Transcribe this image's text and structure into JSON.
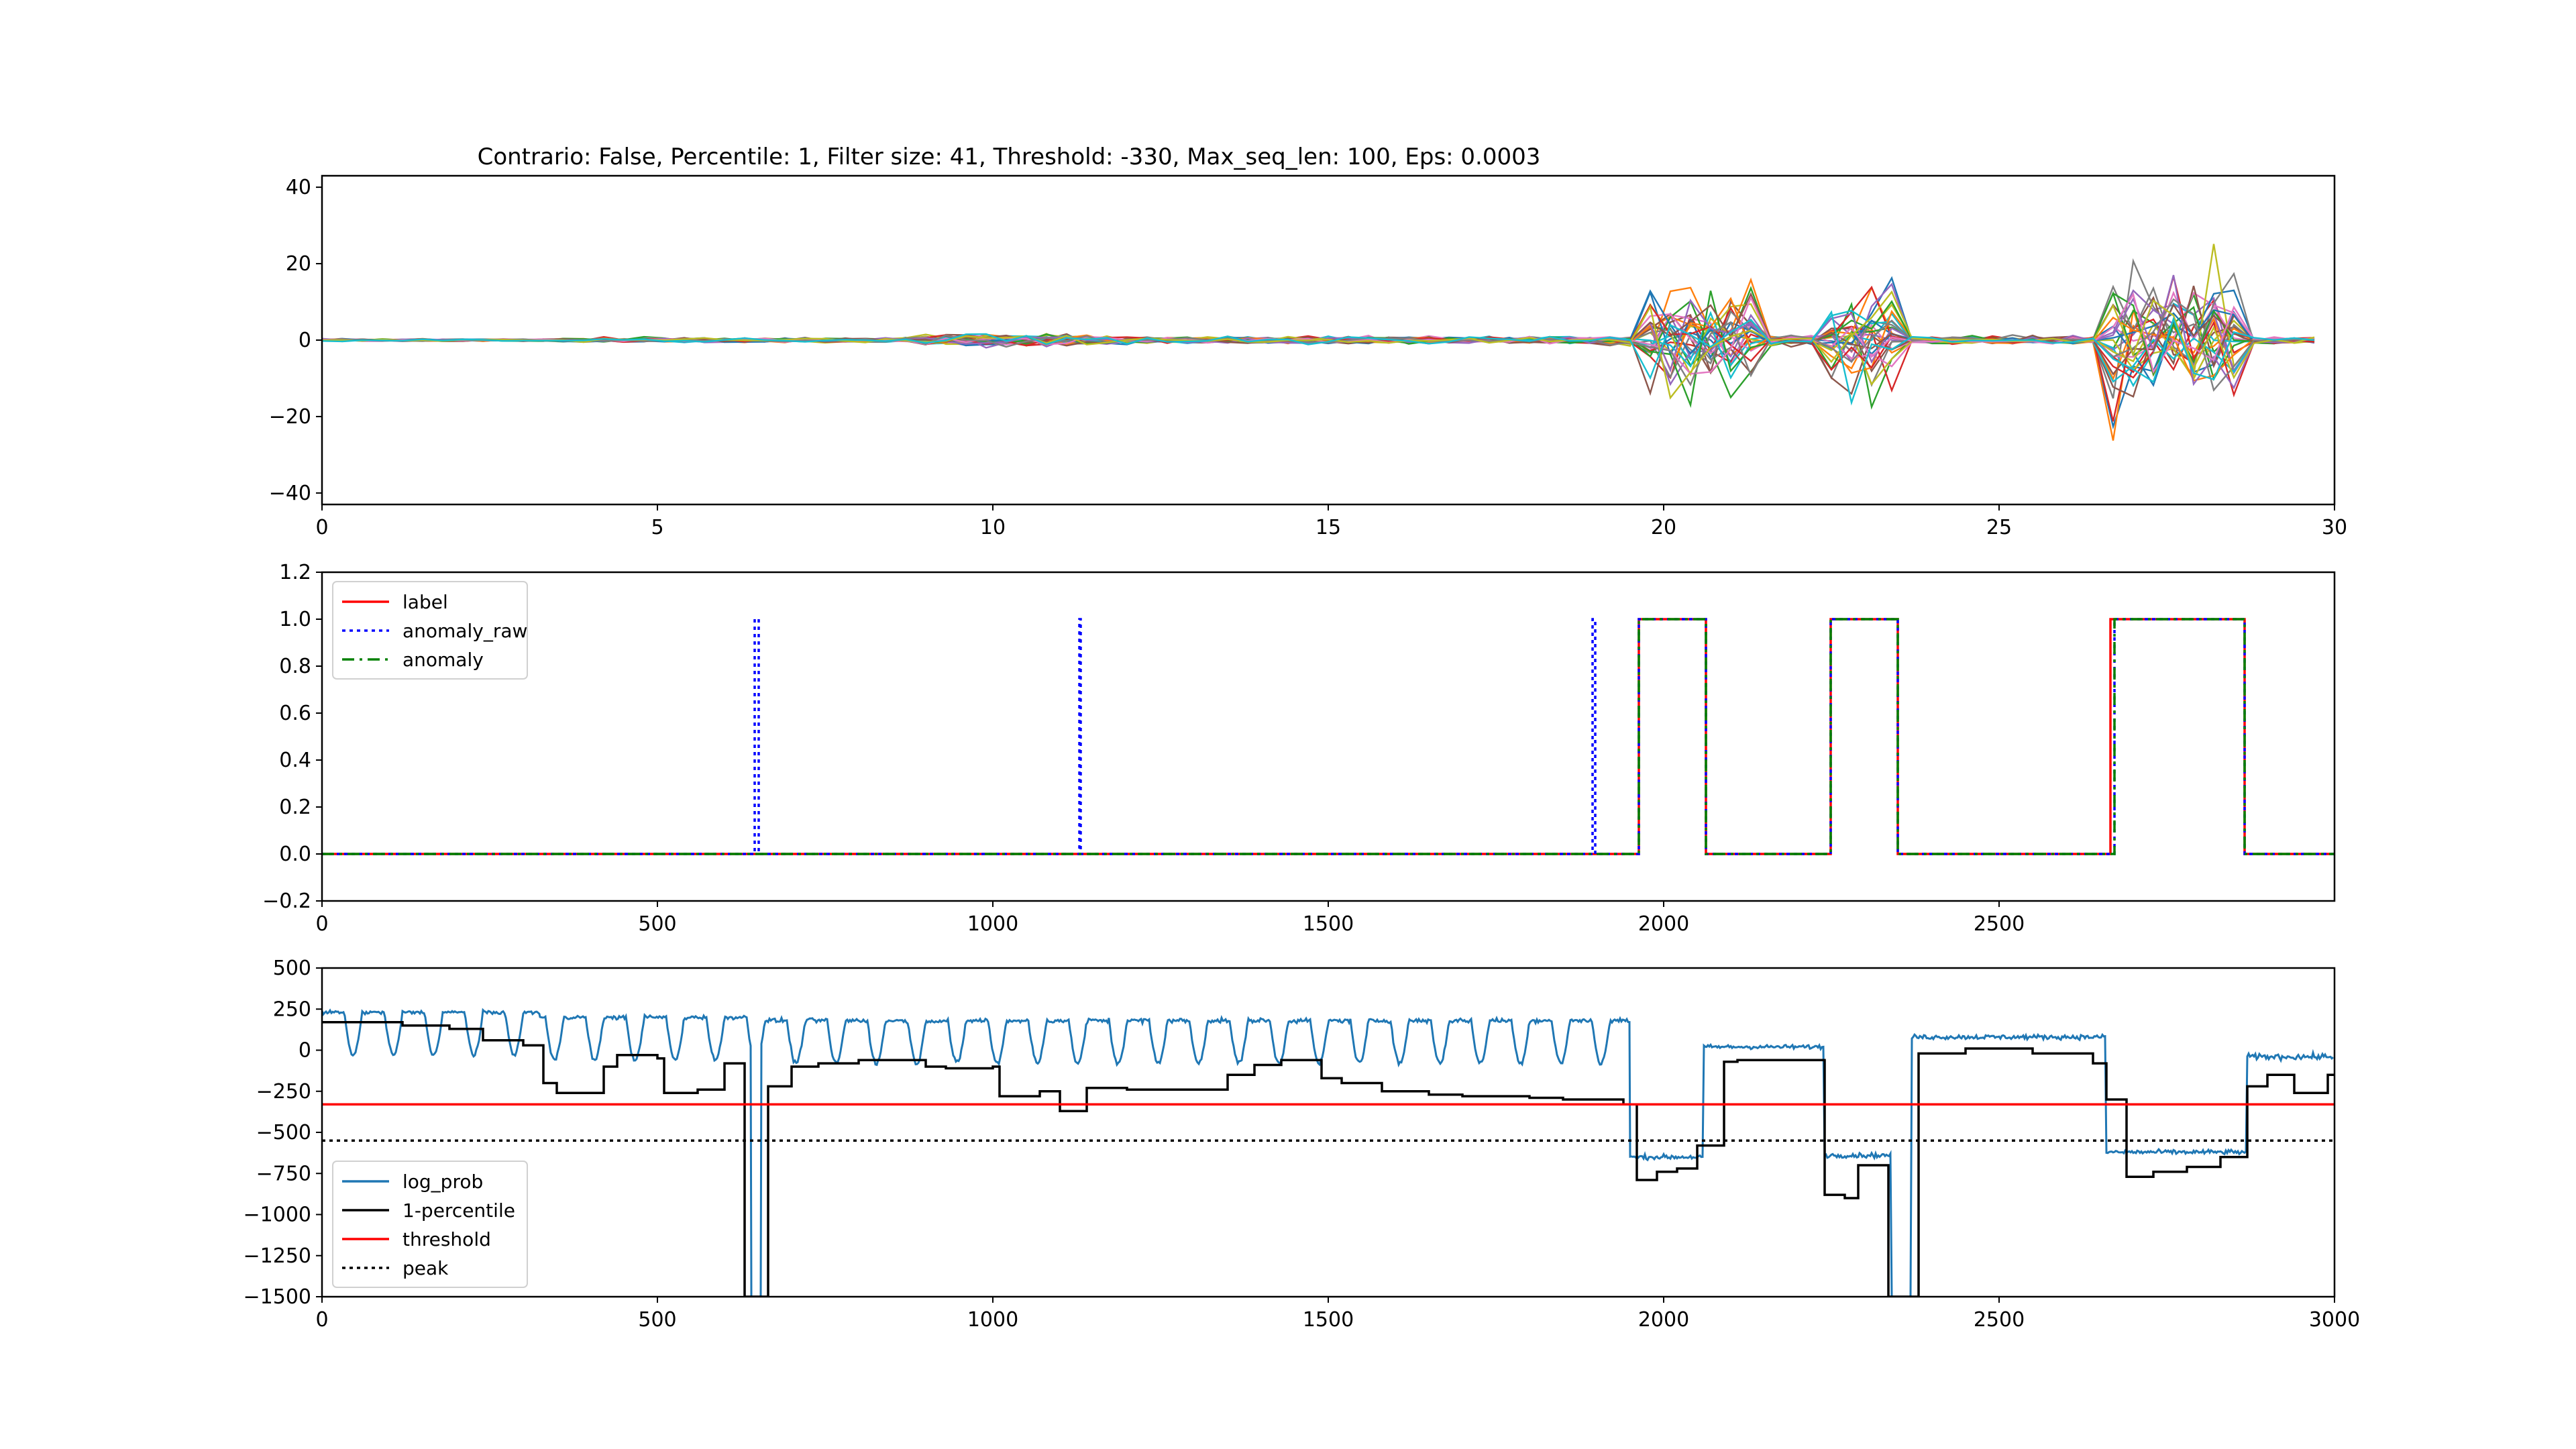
{
  "figure": {
    "title": "Contrario: False, Percentile: 1, Filter size: 41, Threshold: -330, Max_seq_len: 100, Eps: 0.0003"
  },
  "chart_data": [
    {
      "type": "line",
      "title": "Contrario: False, Percentile: 1, Filter size: 41, Threshold: -330, Max_seq_len: 100, Eps: 0.0003",
      "xlabel": "",
      "ylabel": "",
      "xlim": [
        0,
        30
      ],
      "ylim": [
        -43,
        43
      ],
      "xticks": [
        0,
        5,
        10,
        15,
        20,
        25,
        30
      ],
      "yticks": [
        -40,
        -20,
        0,
        20,
        40
      ],
      "grid": false,
      "legend": null,
      "series_count": 30,
      "palette": [
        "#1f77b4",
        "#ff7f0e",
        "#2ca02c",
        "#d62728",
        "#9467bd",
        "#8c564b",
        "#e377c2",
        "#7f7f7f",
        "#bcbd22",
        "#17becf"
      ],
      "x_step": 0.3,
      "noise_regions": [
        {
          "x": [
            0,
            3.5
          ],
          "amplitude": 0.5
        },
        {
          "x": [
            3.5,
            9.0
          ],
          "amplitude": 1.0
        },
        {
          "x": [
            9.0,
            12.0
          ],
          "amplitude": 2.5
        },
        {
          "x": [
            12.0,
            19.0
          ],
          "amplitude": 1.5
        },
        {
          "x": [
            19.0,
            19.6
          ],
          "amplitude": 2.0
        },
        {
          "x": [
            19.6,
            21.4
          ],
          "amplitude": 26
        },
        {
          "x": [
            21.4,
            22.3
          ],
          "amplitude": 2.0
        },
        {
          "x": [
            22.3,
            23.6
          ],
          "amplitude": 26
        },
        {
          "x": [
            23.6,
            26.6
          ],
          "amplitude": 1.5
        },
        {
          "x": [
            26.6,
            28.8
          ],
          "amplitude": 32
        },
        {
          "x": [
            28.8,
            29.8
          ],
          "amplitude": 1.5
        }
      ]
    },
    {
      "type": "line",
      "xlim": [
        0,
        3000
      ],
      "ylim": [
        -0.2,
        1.2
      ],
      "xticks": [
        0,
        500,
        1000,
        1500,
        2000,
        2500
      ],
      "yticks": [
        -0.2,
        0.0,
        0.2,
        0.4,
        0.6,
        0.8,
        1.0,
        1.2
      ],
      "ytick_labels": [
        "−0.2",
        "0.0",
        "0.2",
        "0.4",
        "0.6",
        "0.8",
        "1.0",
        "1.2"
      ],
      "legend": "upper left",
      "series": [
        {
          "name": "label",
          "color": "#ff0000",
          "style": "solid",
          "x": [
            0,
            1963,
            1963,
            2063,
            2063,
            2249,
            2249,
            2349,
            2349,
            2666,
            2666,
            2866,
            2866,
            3000
          ],
          "y": [
            0,
            0,
            1,
            1,
            0,
            0,
            1,
            1,
            0,
            0,
            1,
            1,
            0,
            0
          ]
        },
        {
          "name": "anomaly_raw",
          "color": "#0000ff",
          "style": "dotted",
          "x": [
            0,
            645,
            645,
            651,
            651,
            1129,
            1129,
            1131,
            1131,
            1894,
            1894,
            1898,
            1898,
            1963,
            1963,
            2063,
            2063,
            2249,
            2249,
            2349,
            2349,
            2672,
            2672,
            2866,
            2866,
            3000
          ],
          "y": [
            0,
            0,
            1,
            1,
            0,
            0,
            1,
            1,
            0,
            0,
            1,
            1,
            0,
            0,
            1,
            1,
            0,
            0,
            1,
            1,
            0,
            0,
            1,
            1,
            0,
            0
          ]
        },
        {
          "name": "anomaly",
          "color": "#008000",
          "style": "dashdot",
          "x": [
            0,
            1963,
            1963,
            2063,
            2063,
            2249,
            2249,
            2349,
            2349,
            2672,
            2672,
            2866,
            2866,
            3000
          ],
          "y": [
            0,
            0,
            1,
            1,
            0,
            0,
            1,
            1,
            0,
            0,
            1,
            1,
            0,
            0
          ]
        }
      ]
    },
    {
      "type": "line",
      "xlim": [
        0,
        3000
      ],
      "ylim": [
        -1500,
        500
      ],
      "xticks": [
        0,
        500,
        1000,
        1500,
        2000,
        2500,
        3000
      ],
      "yticks": [
        -1500,
        -1250,
        -1000,
        -750,
        -500,
        -250,
        0,
        250,
        500
      ],
      "ytick_labels": [
        "−1500",
        "−1250",
        "−1000",
        "−750",
        "−500",
        "−250",
        "0",
        "250",
        "500"
      ],
      "legend": "lower left",
      "series": [
        {
          "name": "log_prob",
          "color": "#1f77b4",
          "style": "solid",
          "segments": [
            {
              "x": [
                0,
                325
              ],
              "base": 230,
              "wiggle": 30,
              "dips": true
            },
            {
              "x": [
                325,
                640
              ],
              "base": 200,
              "wiggle": 35,
              "dips": true
            },
            {
              "x": [
                640,
                655
              ],
              "value": -1500
            },
            {
              "x": [
                655,
                1950
              ],
              "base": 180,
              "wiggle": 40,
              "dips": true
            },
            {
              "x": [
                1950,
                2060
              ],
              "base": -650,
              "wiggle": 40
            },
            {
              "x": [
                2060,
                2240
              ],
              "base": 20,
              "wiggle": 35
            },
            {
              "x": [
                2240,
                2340
              ],
              "base": -640,
              "wiggle": 40
            },
            {
              "x": [
                2340,
                2370
              ],
              "value": -1500
            },
            {
              "x": [
                2370,
                2660
              ],
              "base": 80,
              "wiggle": 40
            },
            {
              "x": [
                2660,
                2870
              ],
              "base": -620,
              "wiggle": 40
            },
            {
              "x": [
                2870,
                3000
              ],
              "base": -40,
              "wiggle": 50
            }
          ]
        },
        {
          "name": "1-percentile",
          "color": "#000000",
          "style": "solid",
          "steps": [
            [
              0,
              170
            ],
            [
              120,
              150
            ],
            [
              190,
              130
            ],
            [
              240,
              60
            ],
            [
              300,
              30
            ],
            [
              330,
              -200
            ],
            [
              350,
              -260
            ],
            [
              420,
              -100
            ],
            [
              440,
              -30
            ],
            [
              500,
              -50
            ],
            [
              510,
              -260
            ],
            [
              560,
              -240
            ],
            [
              600,
              -80
            ],
            [
              630,
              -1500
            ],
            [
              665,
              -220
            ],
            [
              700,
              -100
            ],
            [
              740,
              -80
            ],
            [
              800,
              -60
            ],
            [
              900,
              -100
            ],
            [
              930,
              -110
            ],
            [
              1000,
              -100
            ],
            [
              1010,
              -280
            ],
            [
              1070,
              -250
            ],
            [
              1100,
              -370
            ],
            [
              1140,
              -230
            ],
            [
              1200,
              -240
            ],
            [
              1350,
              -150
            ],
            [
              1390,
              -90
            ],
            [
              1430,
              -60
            ],
            [
              1490,
              -170
            ],
            [
              1520,
              -200
            ],
            [
              1580,
              -250
            ],
            [
              1650,
              -270
            ],
            [
              1700,
              -280
            ],
            [
              1800,
              -290
            ],
            [
              1850,
              -300
            ],
            [
              1940,
              -330
            ],
            [
              1960,
              -790
            ],
            [
              1990,
              -740
            ],
            [
              2020,
              -720
            ],
            [
              2050,
              -580
            ],
            [
              2090,
              -70
            ],
            [
              2110,
              -60
            ],
            [
              2200,
              -60
            ],
            [
              2240,
              -880
            ],
            [
              2270,
              -900
            ],
            [
              2290,
              -700
            ],
            [
              2335,
              -1500
            ],
            [
              2380,
              -20
            ],
            [
              2400,
              -20
            ],
            [
              2450,
              10
            ],
            [
              2550,
              -20
            ],
            [
              2640,
              -80
            ],
            [
              2660,
              -300
            ],
            [
              2690,
              -770
            ],
            [
              2730,
              -740
            ],
            [
              2780,
              -710
            ],
            [
              2830,
              -650
            ],
            [
              2870,
              -220
            ],
            [
              2900,
              -150
            ],
            [
              2940,
              -260
            ],
            [
              2990,
              -150
            ],
            [
              3000,
              -150
            ]
          ]
        },
        {
          "name": "threshold",
          "color": "#ff0000",
          "style": "solid",
          "x": [
            0,
            3000
          ],
          "y": [
            -330,
            -330
          ]
        },
        {
          "name": "peak",
          "color": "#000000",
          "style": "dotted",
          "x": [
            0,
            3000
          ],
          "y": [
            -550,
            -550
          ]
        }
      ]
    }
  ]
}
